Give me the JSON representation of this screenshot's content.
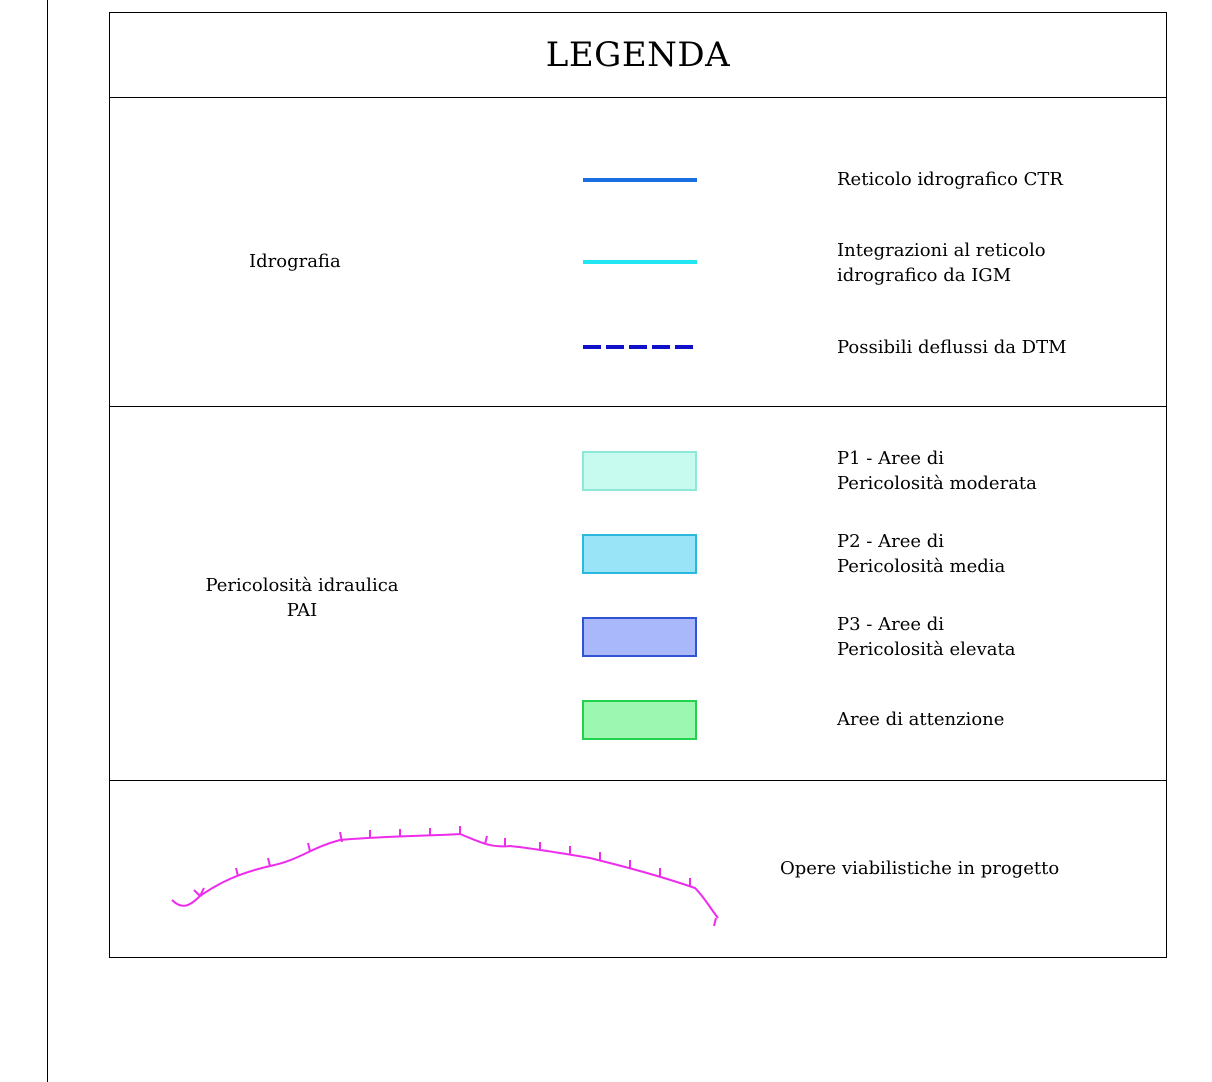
{
  "legend": {
    "title": "LEGENDA",
    "sections": {
      "idrografia": {
        "label": "Idrografia",
        "items": [
          {
            "label": "Reticolo idrografico CTR",
            "symbol": "solid-line",
            "color": "#1a6fe0"
          },
          {
            "label": "Integrazioni al reticolo\nidrografico da IGM",
            "symbol": "solid-line",
            "color": "#22e6f2"
          },
          {
            "label": "Possibili deflussi da DTM",
            "symbol": "dashed-line",
            "color": "#1010c8"
          }
        ]
      },
      "pericolosita": {
        "label": "Pericolosità idraulica\nPAI",
        "items": [
          {
            "label": "P1 - Aree di\nPericolosità moderata",
            "symbol": "swatch",
            "fill": "#c8fbef",
            "border": "#8ee8d6"
          },
          {
            "label": "P2 - Aree di\nPericolosità media",
            "symbol": "swatch",
            "fill": "#9ae4f8",
            "border": "#2cb8dc"
          },
          {
            "label": "P3 - Aree di\nPericolosità elevata",
            "symbol": "swatch",
            "fill": "#a8b8fb",
            "border": "#2f55d6"
          },
          {
            "label": "Aree di attenzione",
            "symbol": "swatch",
            "fill": "#9cf8b0",
            "border": "#22d24e"
          }
        ]
      },
      "opere": {
        "items": [
          {
            "label": "Opere viabilistiche in progetto",
            "symbol": "road-line",
            "color": "#ee2cee"
          }
        ]
      }
    }
  }
}
